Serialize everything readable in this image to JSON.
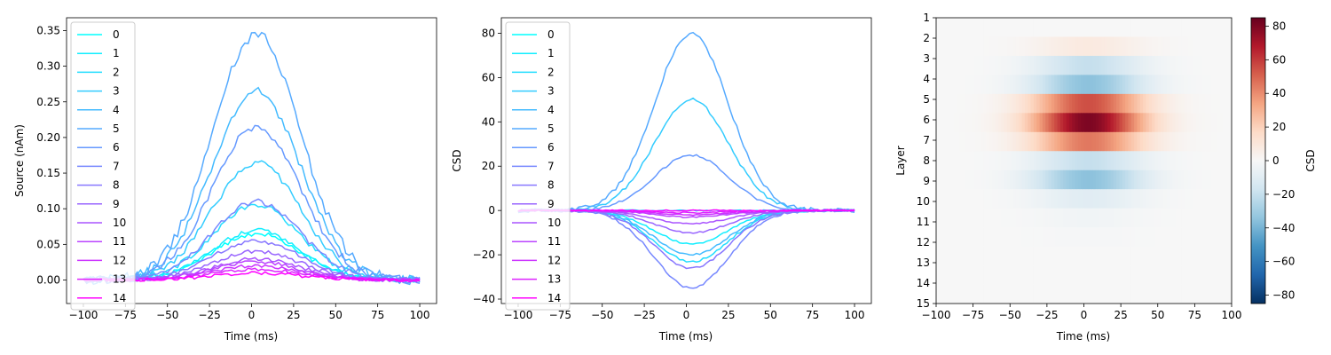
{
  "chart_data": [
    {
      "type": "line",
      "xlabel": "Time (ms)",
      "ylabel": "Source (nAm)",
      "xlim": [
        -110,
        110
      ],
      "ylim": [
        -0.033,
        0.368
      ],
      "xticks": [
        -100,
        -75,
        -50,
        -25,
        0,
        25,
        50,
        75,
        100
      ],
      "xtick_labels": [
        "−100",
        "−75",
        "−50",
        "−25",
        "0",
        "25",
        "50",
        "75",
        "100"
      ],
      "yticks": [
        0.0,
        0.05,
        0.1,
        0.15,
        0.2,
        0.25,
        0.3,
        0.35
      ],
      "ytick_labels": [
        "0.00",
        "0.05",
        "0.10",
        "0.15",
        "0.20",
        "0.25",
        "0.30",
        "0.35"
      ],
      "legend": "upper-left",
      "x_range": [
        -100,
        100
      ],
      "pulse_center": 3,
      "pulse_sigma": 26,
      "series": [
        {
          "name": "0",
          "color": "#00ffff",
          "peak": 0.065
        },
        {
          "name": "1",
          "color": "#11eeff",
          "peak": 0.07
        },
        {
          "name": "2",
          "color": "#22ddff",
          "peak": 0.105
        },
        {
          "name": "3",
          "color": "#33ccff",
          "peak": 0.165
        },
        {
          "name": "4",
          "color": "#44bbff",
          "peak": 0.265
        },
        {
          "name": "5",
          "color": "#55aaff",
          "peak": 0.345
        },
        {
          "name": "6",
          "color": "#6699ff",
          "peak": 0.215
        },
        {
          "name": "7",
          "color": "#7788ff",
          "peak": 0.11
        },
        {
          "name": "8",
          "color": "#8877ff",
          "peak": 0.055
        },
        {
          "name": "9",
          "color": "#9966ff",
          "peak": 0.04
        },
        {
          "name": "10",
          "color": "#aa55ff",
          "peak": 0.03
        },
        {
          "name": "11",
          "color": "#bb44ff",
          "peak": 0.025
        },
        {
          "name": "12",
          "color": "#cc33ff",
          "peak": 0.02
        },
        {
          "name": "13",
          "color": "#dd22ff",
          "peak": 0.015
        },
        {
          "name": "14",
          "color": "#ff00ff",
          "peak": 0.01
        }
      ]
    },
    {
      "type": "line",
      "xlabel": "Time (ms)",
      "ylabel": "CSD",
      "xlim": [
        -110,
        110
      ],
      "ylim": [
        -42,
        87
      ],
      "xticks": [
        -100,
        -75,
        -50,
        -25,
        0,
        25,
        50,
        75,
        100
      ],
      "xtick_labels": [
        "−100",
        "−75",
        "−50",
        "−25",
        "0",
        "25",
        "50",
        "75",
        "100"
      ],
      "yticks": [
        -40,
        -20,
        0,
        20,
        40,
        60,
        80
      ],
      "ytick_labels": [
        "−40",
        "−20",
        "0",
        "20",
        "40",
        "60",
        "80"
      ],
      "legend": "upper-left",
      "x_range": [
        -100,
        100
      ],
      "pulse_center": 3,
      "pulse_sigma": 22,
      "series": [
        {
          "name": "0",
          "color": "#00ffff",
          "peak": 0
        },
        {
          "name": "1",
          "color": "#11eeff",
          "peak": -15
        },
        {
          "name": "2",
          "color": "#22ddff",
          "peak": -23
        },
        {
          "name": "3",
          "color": "#33ccff",
          "peak": 50
        },
        {
          "name": "4",
          "color": "#44bbff",
          "peak": -20
        },
        {
          "name": "5",
          "color": "#55aaff",
          "peak": 80
        },
        {
          "name": "6",
          "color": "#6699ff",
          "peak": 25
        },
        {
          "name": "7",
          "color": "#7788ff",
          "peak": -35
        },
        {
          "name": "8",
          "color": "#8877ff",
          "peak": -26
        },
        {
          "name": "9",
          "color": "#9966ff",
          "peak": -10
        },
        {
          "name": "10",
          "color": "#aa55ff",
          "peak": -6
        },
        {
          "name": "11",
          "color": "#bb44ff",
          "peak": -3
        },
        {
          "name": "12",
          "color": "#cc33ff",
          "peak": -2
        },
        {
          "name": "13",
          "color": "#dd22ff",
          "peak": -1
        },
        {
          "name": "14",
          "color": "#ff00ff",
          "peak": 0
        }
      ]
    },
    {
      "type": "heatmap",
      "xlabel": "Time (ms)",
      "ylabel": "Layer",
      "colorbar_label": "CSD",
      "colormap": "RdBu_r",
      "xlim": [
        -100,
        100
      ],
      "xticks": [
        -100,
        -75,
        -50,
        -25,
        0,
        25,
        50,
        75,
        100
      ],
      "xtick_labels": [
        "−100",
        "−75",
        "−50",
        "−25",
        "0",
        "25",
        "50",
        "75",
        "100"
      ],
      "layers": [
        "1",
        "2",
        "3",
        "4",
        "5",
        "6",
        "7",
        "8",
        "9",
        "10",
        "11",
        "12",
        "13",
        "14",
        "15"
      ],
      "layer_peaks": [
        0,
        8,
        -20,
        -35,
        55,
        80,
        45,
        -20,
        -35,
        -10,
        -3,
        -1,
        0,
        0,
        0
      ],
      "pulse_center": 3,
      "pulse_sigma": 26,
      "vlim": [
        -85,
        85
      ],
      "colorbar_ticks": [
        -80,
        -60,
        -40,
        -20,
        0,
        20,
        40,
        60,
        80
      ],
      "colorbar_tick_labels": [
        "−80",
        "−60",
        "−40",
        "−20",
        "0",
        "20",
        "40",
        "60",
        "80"
      ]
    }
  ]
}
